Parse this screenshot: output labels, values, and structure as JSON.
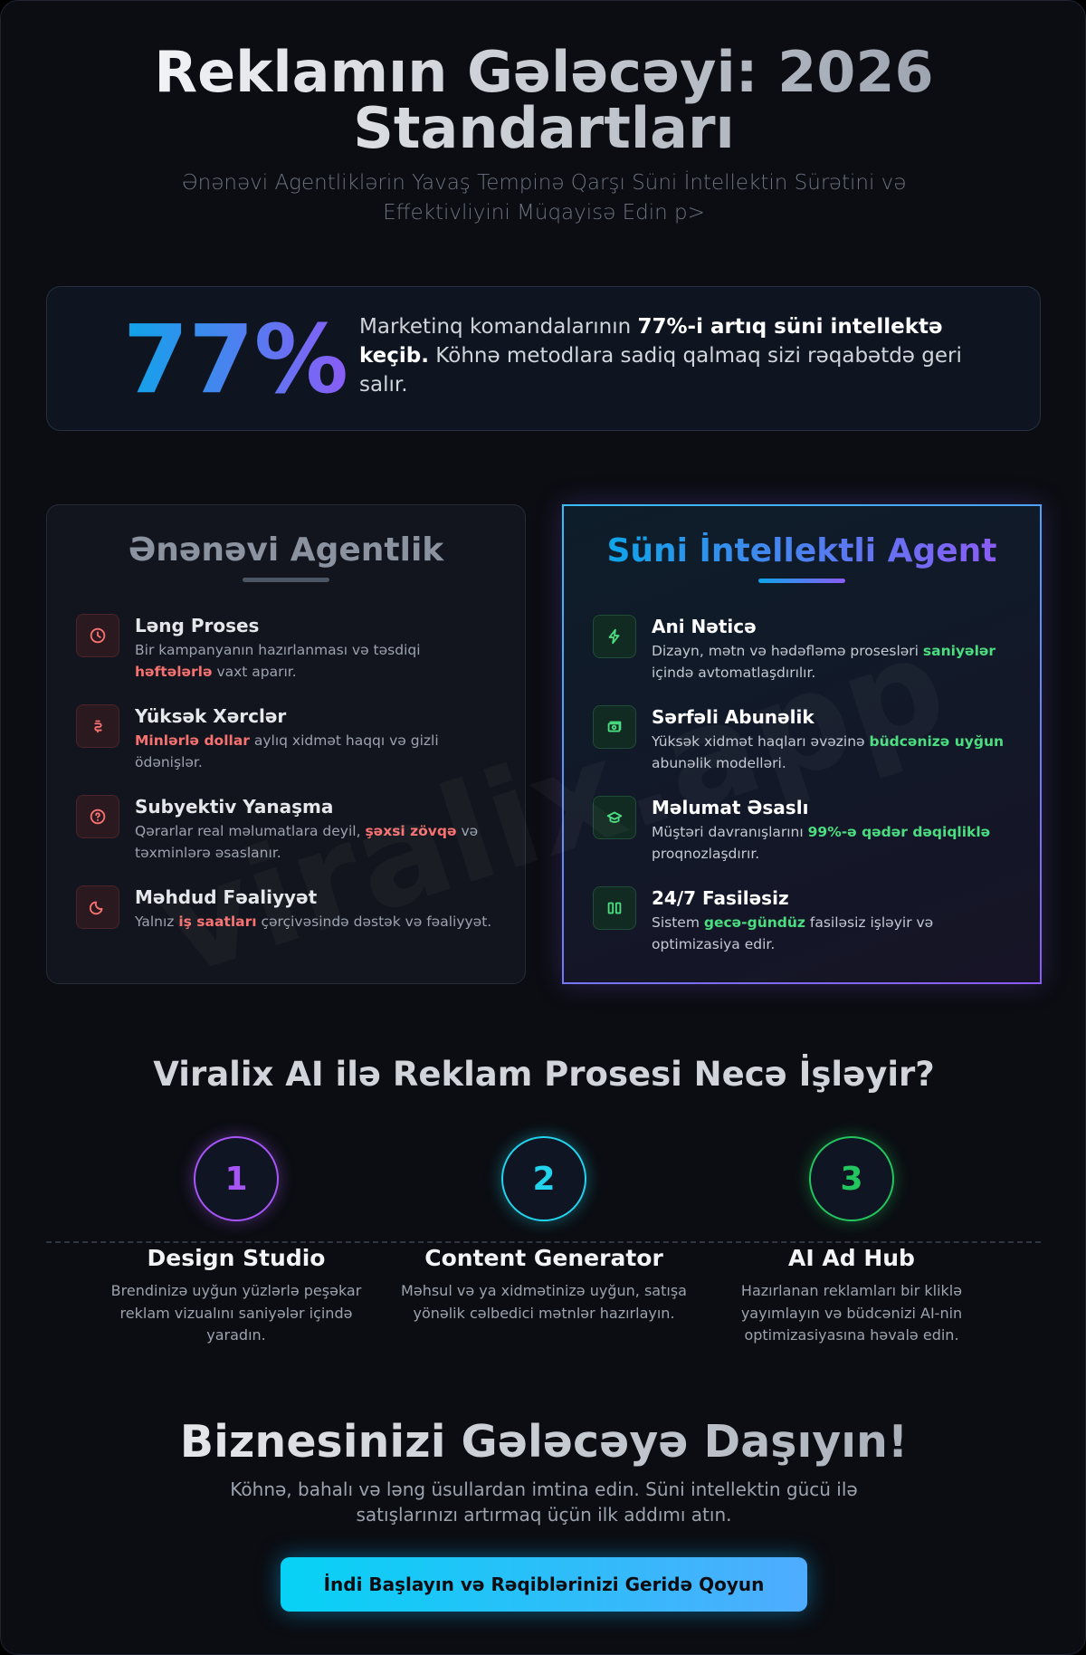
{
  "header": {
    "title": "Reklamın Gələcəyi: 2026 Standartları",
    "subtitle": "Ənənəvi Agentliklərin Yavaş Tempinə Qarşı Süni İntellektin Sürətini və Effektivliyini Müqayisə Edin p>"
  },
  "stat": {
    "value": "77%",
    "text": [
      {
        "text": "Marketinq komandalarının "
      },
      {
        "text": "77%-i artıq süni intellektə keçib.",
        "highlight": true
      },
      {
        "text": " Köhnə metodlara sadiq qalmaq sizi rəqabətdə geri salır."
      }
    ]
  },
  "comparison": [
    {
      "title": "Ənənəvi Agentlik",
      "items": [
        {
          "title": "Ləng Proses",
          "text": [
            {
              "text": "Bir kampanyanın hazırlanması və təsdiqi "
            },
            {
              "text": "həftələrlə",
              "highlight": true
            },
            {
              "text": " vaxt aparır."
            }
          ]
        },
        {
          "title": "Yüksək Xərclər",
          "text": [
            {
              "text": "Minlərlə dollar",
              "highlight": true
            },
            {
              "text": " aylıq xidmət haqqı və gizli ödənişlər."
            }
          ]
        },
        {
          "title": "Subyektiv Yanaşma",
          "text": [
            {
              "text": "Qərarlar real məlumatlara deyil, "
            },
            {
              "text": "şəxsi zövqə",
              "highlight": true
            },
            {
              "text": " və təxminlərə əsaslanır."
            }
          ]
        },
        {
          "title": "Məhdud Fəaliyyət",
          "text": [
            {
              "text": "Yalnız "
            },
            {
              "text": "iş saatları",
              "highlight": true
            },
            {
              "text": " çərçivəsində dəstək və fəaliyyət."
            }
          ]
        }
      ]
    },
    {
      "title": "Süni İntellektli Agent",
      "items": [
        {
          "title": "Ani Nəticə",
          "text": [
            {
              "text": "Dizayn, mətn və hədəfləmə prosesləri "
            },
            {
              "text": "saniyələr",
              "highlight": true
            },
            {
              "text": " içində avtomatlaşdırılır."
            }
          ]
        },
        {
          "title": "Sərfəli Abunəlik",
          "text": [
            {
              "text": "Yüksək xidmət haqları əvəzinə "
            },
            {
              "text": "büdcənizə uyğun",
              "highlight": true
            },
            {
              "text": " abunəlik modelləri."
            }
          ]
        },
        {
          "title": "Məlumat Əsaslı",
          "text": [
            {
              "text": "Müştəri davranışlarını "
            },
            {
              "text": "99%-ə qədər dəqiqliklə",
              "highlight": true
            },
            {
              "text": " proqnozlaşdırır."
            }
          ]
        },
        {
          "title": "24/7 Fasiləsiz",
          "text": [
            {
              "text": "Sistem "
            },
            {
              "text": "gecə-gündüz",
              "highlight": true
            },
            {
              "text": " fasiləsiz işləyir və optimizasiya edir."
            }
          ]
        }
      ]
    }
  ],
  "watermark": "viralix.app",
  "process": {
    "title": "Viralix AI ilə Reklam Prosesi Necə İşləyir?",
    "steps": [
      {
        "number": "1",
        "title": "Design Studio",
        "text": "Brendinizə uyğun yüzlərlə peşəkar reklam vizualını saniyələr içində yaradın."
      },
      {
        "number": "2",
        "title": "Content Generator",
        "text": "Məhsul və ya xidmətinizə uyğun, satışa yönəlik cəlbedici mətnlər hazırlayın."
      },
      {
        "number": "3",
        "title": "AI Ad Hub",
        "text": "Hazırlanan reklamları bir kliklə yayımlayın və büdcənizi AI-nin optimizasiyasına həvalə edin."
      }
    ]
  },
  "cta": {
    "title": "Biznesinizi Gələcəyə Daşıyın!",
    "text": "Köhnə, bahalı və ləng üsullardan imtina edin. Süni intellektin gücü ilə satışlarınızı artırmaq üçün ilk addımı atın.",
    "button": "İndi Başlayın və Rəqiblərinizi Geridə Qoyun"
  }
}
